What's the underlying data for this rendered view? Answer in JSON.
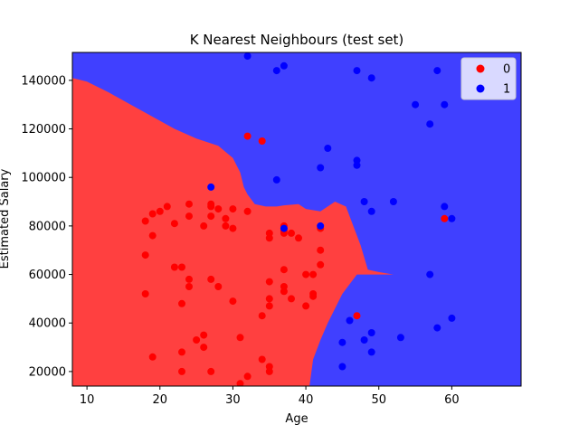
{
  "chart_data": {
    "type": "scatter",
    "title": "K Nearest Neighbours (test set)",
    "xlabel": "Age",
    "ylabel": "Estimated Salary",
    "xlim": [
      8,
      69.5
    ],
    "ylim": [
      14000,
      151500
    ],
    "xticks": [
      10,
      20,
      30,
      40,
      50,
      60
    ],
    "yticks": [
      20000,
      40000,
      60000,
      80000,
      100000,
      120000,
      140000
    ],
    "ytick_labels": [
      "20000",
      "40000",
      "60000",
      "80000",
      "100000",
      "120000",
      "140000"
    ],
    "legend_position": "top-right",
    "grid": false,
    "region_colors": {
      "0": "#ff4040",
      "1": "#4040ff"
    },
    "decision_boundary": [
      [
        8,
        141000
      ],
      [
        10,
        139500
      ],
      [
        13,
        135000
      ],
      [
        16,
        130000
      ],
      [
        19,
        125000
      ],
      [
        22,
        120000
      ],
      [
        25,
        116000
      ],
      [
        28,
        113000
      ],
      [
        30,
        108000
      ],
      [
        31,
        102000
      ],
      [
        31.5,
        96000
      ],
      [
        32,
        93000
      ],
      [
        33,
        89000
      ],
      [
        34.5,
        88000
      ],
      [
        36,
        88000
      ],
      [
        37,
        88500
      ],
      [
        39,
        89000
      ],
      [
        40,
        87000
      ],
      [
        42,
        86000
      ],
      [
        44,
        90000
      ],
      [
        45.5,
        88000
      ],
      [
        46.5,
        80000
      ],
      [
        47.5,
        72000
      ],
      [
        48.5,
        62000
      ],
      [
        50,
        61000
      ],
      [
        52,
        60000
      ],
      [
        47,
        60000
      ],
      [
        45,
        52000
      ],
      [
        43,
        40000
      ],
      [
        42,
        33000
      ],
      [
        41,
        25000
      ],
      [
        40.5,
        14000
      ]
    ],
    "series": [
      {
        "name": "0",
        "color": "#ff0000",
        "points": [
          [
            32,
            117000
          ],
          [
            34,
            115000
          ],
          [
            59,
            83000
          ],
          [
            18,
            82000
          ],
          [
            19,
            85000
          ],
          [
            20,
            86000
          ],
          [
            21,
            88000
          ],
          [
            19,
            76000
          ],
          [
            18,
            68000
          ],
          [
            18,
            52000
          ],
          [
            22,
            81000
          ],
          [
            24,
            89000
          ],
          [
            24,
            84000
          ],
          [
            26,
            80000
          ],
          [
            27,
            89000
          ],
          [
            27,
            88000
          ],
          [
            27,
            84000
          ],
          [
            28,
            87000
          ],
          [
            29,
            83000
          ],
          [
            29,
            80000
          ],
          [
            30,
            87000
          ],
          [
            30,
            79000
          ],
          [
            32,
            86000
          ],
          [
            22,
            63000
          ],
          [
            23,
            63000
          ],
          [
            24,
            58000
          ],
          [
            24,
            55000
          ],
          [
            23,
            48000
          ],
          [
            27,
            58000
          ],
          [
            28,
            55000
          ],
          [
            30,
            49000
          ],
          [
            25,
            33000
          ],
          [
            26,
            35000
          ],
          [
            26,
            30000
          ],
          [
            23,
            28000
          ],
          [
            23,
            20000
          ],
          [
            27,
            20000
          ],
          [
            19,
            26000
          ],
          [
            31,
            34000
          ],
          [
            32,
            18000
          ],
          [
            31,
            15000
          ],
          [
            34,
            43000
          ],
          [
            35,
            57000
          ],
          [
            35,
            50000
          ],
          [
            35,
            47000
          ],
          [
            35,
            77000
          ],
          [
            35,
            75000
          ],
          [
            37,
            80000
          ],
          [
            37,
            78000
          ],
          [
            37,
            77000
          ],
          [
            38,
            77000
          ],
          [
            37,
            62000
          ],
          [
            37,
            55000
          ],
          [
            37,
            53000
          ],
          [
            38,
            50000
          ],
          [
            39,
            75000
          ],
          [
            40,
            60000
          ],
          [
            40,
            47000
          ],
          [
            41,
            60000
          ],
          [
            41,
            52000
          ],
          [
            41,
            51000
          ],
          [
            42,
            79000
          ],
          [
            42,
            70000
          ],
          [
            42,
            64000
          ],
          [
            34,
            25000
          ],
          [
            35,
            22000
          ],
          [
            35,
            20000
          ],
          [
            47,
            43000
          ]
        ]
      },
      {
        "name": "1",
        "color": "#0000ff",
        "points": [
          [
            32,
            150000
          ],
          [
            36,
            144000
          ],
          [
            37,
            146000
          ],
          [
            47,
            144000
          ],
          [
            49,
            141000
          ],
          [
            58,
            144000
          ],
          [
            55,
            130000
          ],
          [
            59,
            130000
          ],
          [
            57,
            122000
          ],
          [
            43,
            112000
          ],
          [
            42,
            104000
          ],
          [
            47,
            107000
          ],
          [
            47,
            105000
          ],
          [
            36,
            99000
          ],
          [
            27,
            96000
          ],
          [
            48,
            90000
          ],
          [
            52,
            90000
          ],
          [
            49,
            86000
          ],
          [
            59,
            88000
          ],
          [
            60,
            83000
          ],
          [
            42,
            80000
          ],
          [
            37,
            79000
          ],
          [
            57,
            60000
          ],
          [
            60,
            42000
          ],
          [
            58,
            38000
          ],
          [
            46,
            41000
          ],
          [
            48,
            33000
          ],
          [
            49,
            36000
          ],
          [
            53,
            34000
          ],
          [
            45,
            32000
          ],
          [
            49,
            28000
          ],
          [
            45,
            22000
          ]
        ]
      }
    ]
  }
}
